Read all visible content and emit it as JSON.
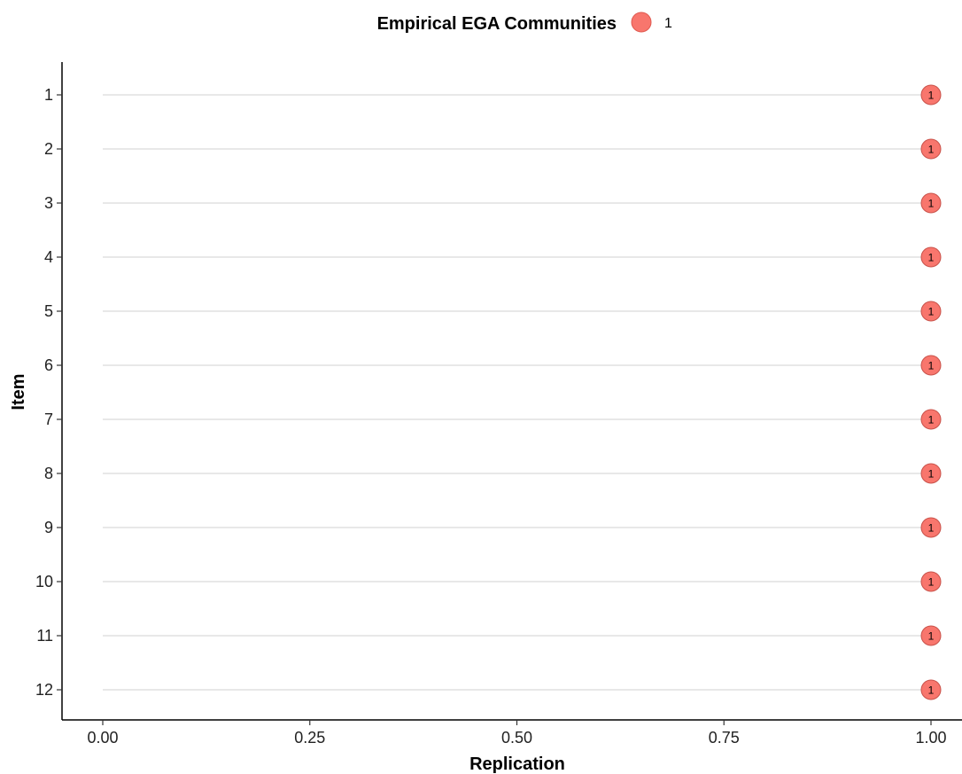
{
  "chart_data": {
    "type": "scatter",
    "legend": {
      "title": "Empirical EGA Communities",
      "position": "top",
      "entries": [
        {
          "label": "1",
          "color": "#F8766D"
        }
      ]
    },
    "xlabel": "Replication",
    "ylabel": "Item",
    "xlim": [
      0,
      1
    ],
    "x_ticks": [
      "0.00",
      "0.25",
      "0.50",
      "0.75",
      "1.00"
    ],
    "x_tick_values": [
      0,
      0.25,
      0.5,
      0.75,
      1
    ],
    "categories": [
      "1",
      "2",
      "3",
      "4",
      "5",
      "6",
      "7",
      "8",
      "9",
      "10",
      "11",
      "12"
    ],
    "grid": "horizontal",
    "series": [
      {
        "name": "1",
        "color": "#F8766D",
        "points": [
          {
            "item": "1",
            "x": 1.0,
            "label": "1"
          },
          {
            "item": "2",
            "x": 1.0,
            "label": "1"
          },
          {
            "item": "3",
            "x": 1.0,
            "label": "1"
          },
          {
            "item": "4",
            "x": 1.0,
            "label": "1"
          },
          {
            "item": "5",
            "x": 1.0,
            "label": "1"
          },
          {
            "item": "6",
            "x": 1.0,
            "label": "1"
          },
          {
            "item": "7",
            "x": 1.0,
            "label": "1"
          },
          {
            "item": "8",
            "x": 1.0,
            "label": "1"
          },
          {
            "item": "9",
            "x": 1.0,
            "label": "1"
          },
          {
            "item": "10",
            "x": 1.0,
            "label": "1"
          },
          {
            "item": "11",
            "x": 1.0,
            "label": "1"
          },
          {
            "item": "12",
            "x": 1.0,
            "label": "1"
          }
        ]
      }
    ]
  }
}
